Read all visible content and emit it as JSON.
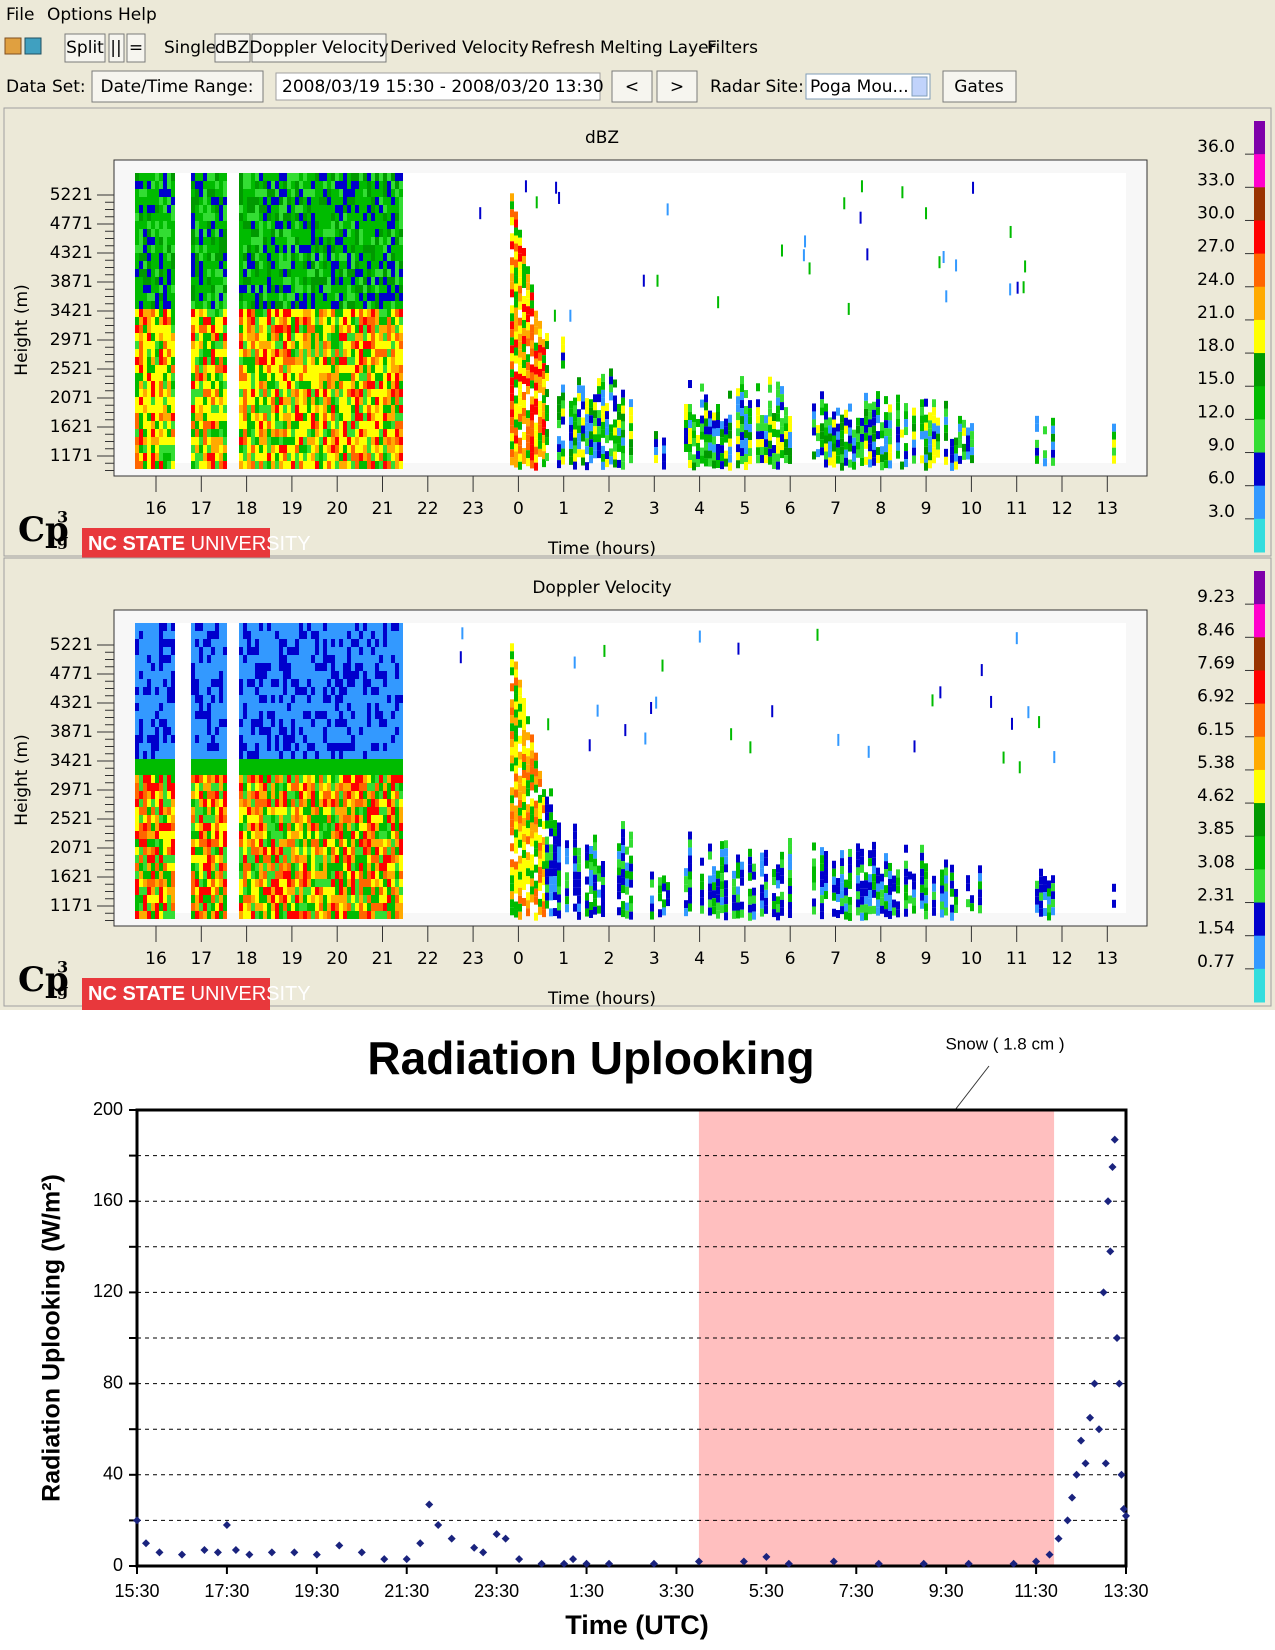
{
  "menu": [
    "File",
    "Options",
    "Help"
  ],
  "toolbar": {
    "split": "Split",
    "vertical": "||",
    "horizontal": "=",
    "single": "Single",
    "dbz": "dBZ",
    "doppler": "Doppler Velocity",
    "derived": "Derived Velocity",
    "refresh": "Refresh",
    "melting": "Melting Layer",
    "filters": "Filters"
  },
  "dataset": {
    "label": "Data Set:",
    "range_button": "Date/Time Range:",
    "range": "2008/03/19 15:30 - 2008/03/20 13:30",
    "prev": "<",
    "next": ">",
    "site_label": "Radar Site:",
    "site": "Poga Mou...",
    "gates": "Gates"
  },
  "logo": {
    "cp": "Cp",
    "sup": "3",
    "sub": "g",
    "ncstate": "NC STATE",
    "university": "UNIVERSITY"
  },
  "panels": [
    {
      "title": "dBZ",
      "ylabel": "Height (m)",
      "xlabel": "Time (hours)",
      "yticks": [
        5221,
        4771,
        4321,
        3871,
        3421,
        2971,
        2521,
        2071,
        1621,
        1171
      ],
      "xticks": [
        16,
        17,
        18,
        19,
        20,
        21,
        22,
        23,
        0,
        1,
        2,
        3,
        4,
        5,
        6,
        7,
        8,
        9,
        10,
        11,
        12,
        13
      ],
      "colorbar": [
        "36.0",
        "33.0",
        "30.0",
        "27.0",
        "24.0",
        "21.0",
        "18.0",
        "15.0",
        "12.0",
        "9.0",
        "6.0",
        "3.0"
      ]
    },
    {
      "title": "Doppler Velocity",
      "ylabel": "Height (m)",
      "xlabel": "Time (hours)",
      "yticks": [
        5221,
        4771,
        4321,
        3871,
        3421,
        2971,
        2521,
        2071,
        1621,
        1171
      ],
      "xticks": [
        16,
        17,
        18,
        19,
        20,
        21,
        22,
        23,
        0,
        1,
        2,
        3,
        4,
        5,
        6,
        7,
        8,
        9,
        10,
        11,
        12,
        13
      ],
      "colorbar": [
        "9.23",
        "8.46",
        "7.69",
        "6.92",
        "6.15",
        "5.38",
        "4.62",
        "3.85",
        "3.08",
        "2.31",
        "1.54",
        "0.77"
      ]
    }
  ],
  "chart_data": {
    "type": "scatter",
    "title": "Radiation Uplooking",
    "annotation": "Snow ( 1.8 cm )",
    "xlabel": "Time (UTC)",
    "ylabel": "Radiation Uplooking (W/m²)",
    "xlim": [
      15.5,
      37.5
    ],
    "xticks": [
      {
        "value": 15.5,
        "label": "15:30"
      },
      {
        "value": 17.5,
        "label": "17:30"
      },
      {
        "value": 19.5,
        "label": "19:30"
      },
      {
        "value": 21.5,
        "label": "21:30"
      },
      {
        "value": 23.5,
        "label": "23:30"
      },
      {
        "value": 25.5,
        "label": "1:30"
      },
      {
        "value": 27.5,
        "label": "3:30"
      },
      {
        "value": 29.5,
        "label": "5:30"
      },
      {
        "value": 31.5,
        "label": "7:30"
      },
      {
        "value": 33.5,
        "label": "9:30"
      },
      {
        "value": 35.5,
        "label": "11:30"
      },
      {
        "value": 37.5,
        "label": "13:30"
      }
    ],
    "ylim": [
      0,
      200
    ],
    "yticks": [
      0,
      40,
      80,
      120,
      160,
      200
    ],
    "minor_yticks": [
      20,
      60,
      100,
      140,
      180
    ],
    "grid": true,
    "shaded": {
      "x": [
        28,
        35.9
      ],
      "color": "#ffbfbf"
    },
    "series": [
      {
        "color": "#1a237e",
        "x": [
          15.5,
          15.7,
          16,
          16.5,
          17,
          17.3,
          17.5,
          17.7,
          18,
          18.5,
          19,
          19.5,
          20,
          20.5,
          21,
          21.5,
          21.8,
          22,
          22.2,
          22.5,
          23,
          23.2,
          23.5,
          23.7,
          24,
          24.5,
          25,
          25.2,
          25.5,
          26,
          27,
          28,
          29,
          29.5,
          30,
          31,
          32,
          33,
          34,
          35,
          35.5,
          35.8,
          36,
          36.2,
          36.3,
          36.4,
          36.5,
          36.6,
          36.7,
          36.8,
          36.9,
          37,
          37.05,
          37.1,
          37.15,
          37.2,
          37.25,
          37.3,
          37.35,
          37.4,
          37.45,
          37.5
        ],
        "values": [
          20,
          10,
          6,
          5,
          7,
          6,
          18,
          7,
          5,
          6,
          6,
          5,
          9,
          6,
          3,
          3,
          10,
          27,
          18,
          12,
          8,
          6,
          14,
          12,
          3,
          1,
          1,
          3,
          1,
          1,
          1,
          2,
          2,
          4,
          1,
          2,
          1,
          1,
          1,
          1,
          2,
          5,
          12,
          20,
          30,
          40,
          55,
          45,
          65,
          80,
          60,
          120,
          45,
          160,
          138,
          175,
          187,
          100,
          80,
          40,
          25,
          22
        ]
      }
    ]
  }
}
